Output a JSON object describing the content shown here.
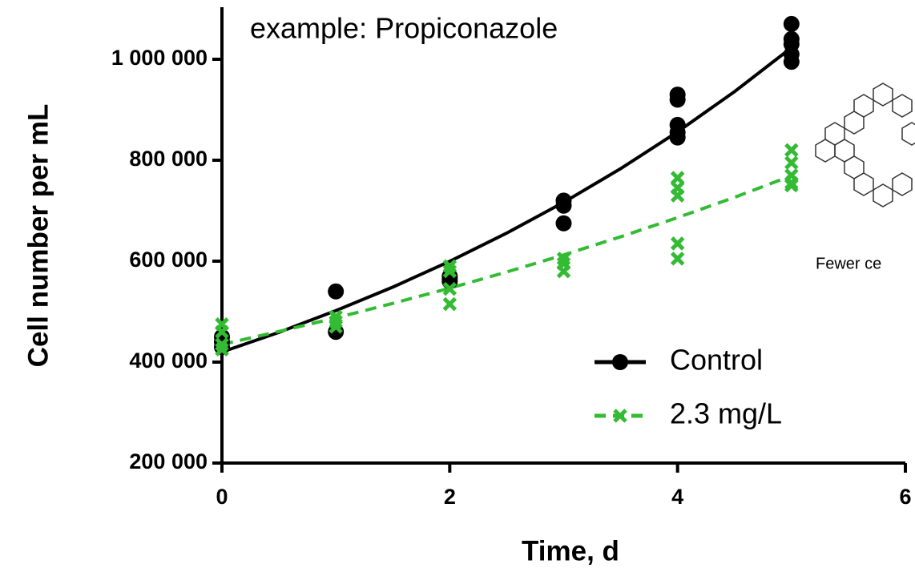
{
  "chart_data": {
    "type": "scatter",
    "annotations": [
      "example: Propiconazole",
      "Fewer ce"
    ],
    "x_label": "Time, d",
    "y_label": "Cell number per mL",
    "xlim": [
      0,
      6
    ],
    "xticks": [
      0,
      2,
      4,
      6
    ],
    "ylim": [
      200000,
      1100000
    ],
    "yticks": [
      {
        "value": 200000,
        "label": "200 000"
      },
      {
        "value": 400000,
        "label": "400 000"
      },
      {
        "value": 600000,
        "label": "600 000"
      },
      {
        "value": 800000,
        "label": "800 000"
      },
      {
        "value": 1000000,
        "label": "1 000 000"
      }
    ],
    "fit_x": [
      0,
      0.5,
      1,
      1.5,
      2,
      2.5,
      3,
      3.5,
      4,
      4.5,
      5
    ],
    "series": [
      {
        "name": "Control",
        "color": "#000000",
        "marker": "circle",
        "dash": false,
        "x": [
          0,
          0,
          0,
          1,
          1,
          2,
          2,
          2,
          3,
          3,
          3,
          4,
          4,
          4,
          4,
          4,
          5,
          5,
          5,
          5,
          5
        ],
        "values": [
          450000,
          440000,
          430000,
          540000,
          460000,
          570000,
          560000,
          565000,
          720000,
          710000,
          675000,
          930000,
          920000,
          870000,
          855000,
          845000,
          1070000,
          1040000,
          1030000,
          1010000,
          995000
        ],
        "fit": [
          420000,
          459000,
          502000,
          548600,
          599700,
          655600,
          716600,
          783300,
          856300,
          935900,
          1023000
        ]
      },
      {
        "name": "2.3 mg/L",
        "color": "#33bb33",
        "marker": "x",
        "dash": true,
        "x": [
          0,
          0,
          0,
          0,
          1,
          1,
          1,
          2,
          2,
          2,
          2,
          3,
          3,
          3,
          4,
          4,
          4,
          4,
          4,
          5,
          5,
          5,
          5,
          5
        ],
        "values": [
          475000,
          460000,
          435000,
          425000,
          490000,
          480000,
          470000,
          590000,
          580000,
          545000,
          515000,
          605000,
          595000,
          580000,
          765000,
          745000,
          730000,
          635000,
          605000,
          820000,
          795000,
          770000,
          755000,
          750000
        ],
        "fit": [
          435000,
          460700,
          487600,
          516400,
          546500,
          578600,
          612400,
          648300,
          686300,
          726500,
          769300
        ]
      }
    ]
  }
}
